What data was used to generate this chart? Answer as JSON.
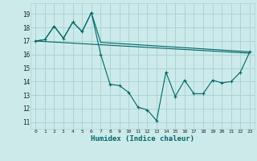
{
  "xlabel": "Humidex (Indice chaleur)",
  "bg_color": "#cdeaea",
  "grid_color": "#aad4d4",
  "line_color": "#006666",
  "xlim": [
    -0.5,
    23.5
  ],
  "ylim": [
    10.5,
    19.8
  ],
  "yticks": [
    11,
    12,
    13,
    14,
    15,
    16,
    17,
    18,
    19
  ],
  "xticks": [
    0,
    1,
    2,
    3,
    4,
    5,
    6,
    7,
    8,
    9,
    10,
    11,
    12,
    13,
    14,
    15,
    16,
    17,
    18,
    19,
    20,
    21,
    22,
    23
  ],
  "line1_x": [
    0,
    23
  ],
  "line1_y": [
    17.0,
    16.1
  ],
  "line2_x": [
    0,
    1,
    2,
    3,
    4,
    5,
    6,
    7,
    23
  ],
  "line2_y": [
    17.0,
    17.1,
    18.1,
    17.2,
    18.4,
    17.7,
    19.1,
    16.9,
    16.2
  ],
  "line3_x": [
    0,
    1,
    2,
    3,
    4,
    5,
    6,
    7,
    8,
    9,
    10,
    11,
    12,
    13,
    14,
    15,
    16,
    17,
    18,
    19,
    20,
    21,
    22,
    23
  ],
  "line3_y": [
    17.0,
    17.1,
    18.1,
    17.2,
    18.4,
    17.7,
    19.1,
    16.0,
    13.8,
    13.7,
    13.2,
    12.1,
    11.9,
    11.1,
    14.7,
    12.9,
    14.1,
    13.1,
    13.1,
    14.1,
    13.9,
    14.0,
    14.7,
    16.2
  ]
}
